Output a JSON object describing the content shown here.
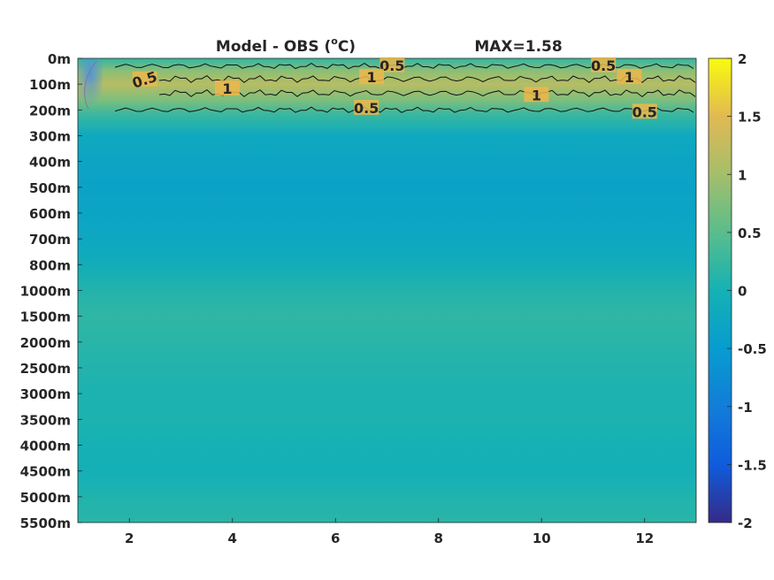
{
  "chart_data": {
    "type": "heatmap",
    "title": "Model - OBS (°C)",
    "title_left": "Model - OBS (",
    "title_sup": "o",
    "title_right": "C)",
    "max_label": "MAX=1.58",
    "x_ticks": [
      "2",
      "4",
      "6",
      "8",
      "10",
      "12"
    ],
    "x_tick_values": [
      2,
      4,
      6,
      8,
      10,
      12
    ],
    "xlim": [
      1,
      13
    ],
    "y_levels": [
      "0m",
      "100m",
      "200m",
      "300m",
      "400m",
      "500m",
      "600m",
      "700m",
      "800m",
      "1000m",
      "1500m",
      "2000m",
      "2500m",
      "3000m",
      "3500m",
      "4000m",
      "4500m",
      "5000m",
      "5500m"
    ],
    "colorbar": {
      "ticks": [
        "2",
        "1.5",
        "1",
        "0.5",
        "0",
        "-0.5",
        "-1",
        "-1.5",
        "-2"
      ],
      "tick_values": [
        2,
        1.5,
        1,
        0.5,
        0,
        -0.5,
        -1,
        -1.5,
        -2
      ],
      "range": [
        -2,
        2
      ],
      "colormap": "parula"
    },
    "contour_labels": [
      {
        "text": "0.5",
        "x": 2.3,
        "level_index": 0.85,
        "rotate": -18
      },
      {
        "text": "0.5",
        "x": 7.1,
        "level_index": 0.3,
        "rotate": 0
      },
      {
        "text": "0.5",
        "x": 11.2,
        "level_index": 0.3,
        "rotate": 0
      },
      {
        "text": "1",
        "x": 3.9,
        "level_index": 1.2,
        "rotate": 0
      },
      {
        "text": "1",
        "x": 6.7,
        "level_index": 0.75,
        "rotate": 0
      },
      {
        "text": "1",
        "x": 9.9,
        "level_index": 1.45,
        "rotate": 0
      },
      {
        "text": "1",
        "x": 11.7,
        "level_index": 0.75,
        "rotate": 0
      },
      {
        "text": "0.5",
        "x": 6.6,
        "level_index": 1.95,
        "rotate": 0
      },
      {
        "text": "0.5",
        "x": 12.0,
        "level_index": 2.1,
        "rotate": 0
      }
    ],
    "field_profile": {
      "level_index": [
        0,
        0.5,
        1,
        1.6,
        2.2,
        3,
        4,
        5,
        6,
        7,
        8,
        9,
        10,
        11,
        12,
        13,
        14,
        15,
        16,
        17,
        18
      ],
      "value": [
        0.2,
        0.85,
        1.15,
        0.75,
        0.25,
        -0.2,
        -0.3,
        -0.35,
        -0.32,
        -0.25,
        -0.1,
        0.1,
        0.2,
        0.15,
        0.1,
        0.05,
        0.05,
        0.0,
        -0.05,
        0.08,
        0.15
      ]
    }
  }
}
